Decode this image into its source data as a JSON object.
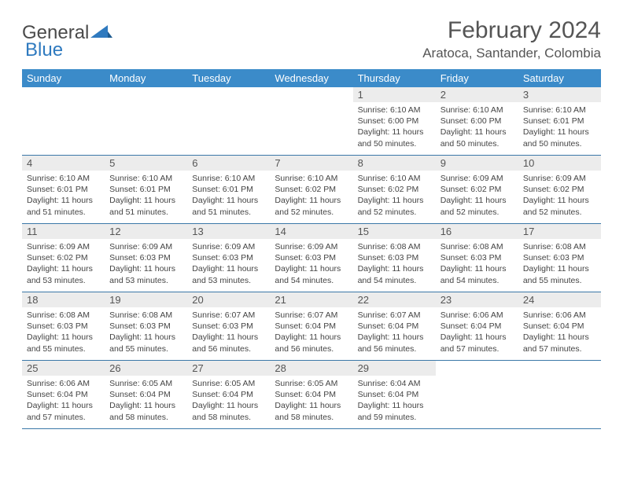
{
  "brand": {
    "part1": "General",
    "part2": "Blue"
  },
  "title": {
    "month": "February 2024",
    "location": "Aratoca, Santander, Colombia"
  },
  "colors": {
    "header_bg": "#3b8bc9",
    "daynum_bg": "#ececec",
    "week_border": "#3b78a8",
    "logo_blue": "#2f7abf"
  },
  "weekdays": [
    "Sunday",
    "Monday",
    "Tuesday",
    "Wednesday",
    "Thursday",
    "Friday",
    "Saturday"
  ],
  "weeks": [
    [
      {
        "n": "",
        "sr": "",
        "ss": "",
        "dl": ""
      },
      {
        "n": "",
        "sr": "",
        "ss": "",
        "dl": ""
      },
      {
        "n": "",
        "sr": "",
        "ss": "",
        "dl": ""
      },
      {
        "n": "",
        "sr": "",
        "ss": "",
        "dl": ""
      },
      {
        "n": "1",
        "sr": "Sunrise: 6:10 AM",
        "ss": "Sunset: 6:00 PM",
        "dl": "Daylight: 11 hours and 50 minutes."
      },
      {
        "n": "2",
        "sr": "Sunrise: 6:10 AM",
        "ss": "Sunset: 6:00 PM",
        "dl": "Daylight: 11 hours and 50 minutes."
      },
      {
        "n": "3",
        "sr": "Sunrise: 6:10 AM",
        "ss": "Sunset: 6:01 PM",
        "dl": "Daylight: 11 hours and 50 minutes."
      }
    ],
    [
      {
        "n": "4",
        "sr": "Sunrise: 6:10 AM",
        "ss": "Sunset: 6:01 PM",
        "dl": "Daylight: 11 hours and 51 minutes."
      },
      {
        "n": "5",
        "sr": "Sunrise: 6:10 AM",
        "ss": "Sunset: 6:01 PM",
        "dl": "Daylight: 11 hours and 51 minutes."
      },
      {
        "n": "6",
        "sr": "Sunrise: 6:10 AM",
        "ss": "Sunset: 6:01 PM",
        "dl": "Daylight: 11 hours and 51 minutes."
      },
      {
        "n": "7",
        "sr": "Sunrise: 6:10 AM",
        "ss": "Sunset: 6:02 PM",
        "dl": "Daylight: 11 hours and 52 minutes."
      },
      {
        "n": "8",
        "sr": "Sunrise: 6:10 AM",
        "ss": "Sunset: 6:02 PM",
        "dl": "Daylight: 11 hours and 52 minutes."
      },
      {
        "n": "9",
        "sr": "Sunrise: 6:09 AM",
        "ss": "Sunset: 6:02 PM",
        "dl": "Daylight: 11 hours and 52 minutes."
      },
      {
        "n": "10",
        "sr": "Sunrise: 6:09 AM",
        "ss": "Sunset: 6:02 PM",
        "dl": "Daylight: 11 hours and 52 minutes."
      }
    ],
    [
      {
        "n": "11",
        "sr": "Sunrise: 6:09 AM",
        "ss": "Sunset: 6:02 PM",
        "dl": "Daylight: 11 hours and 53 minutes."
      },
      {
        "n": "12",
        "sr": "Sunrise: 6:09 AM",
        "ss": "Sunset: 6:03 PM",
        "dl": "Daylight: 11 hours and 53 minutes."
      },
      {
        "n": "13",
        "sr": "Sunrise: 6:09 AM",
        "ss": "Sunset: 6:03 PM",
        "dl": "Daylight: 11 hours and 53 minutes."
      },
      {
        "n": "14",
        "sr": "Sunrise: 6:09 AM",
        "ss": "Sunset: 6:03 PM",
        "dl": "Daylight: 11 hours and 54 minutes."
      },
      {
        "n": "15",
        "sr": "Sunrise: 6:08 AM",
        "ss": "Sunset: 6:03 PM",
        "dl": "Daylight: 11 hours and 54 minutes."
      },
      {
        "n": "16",
        "sr": "Sunrise: 6:08 AM",
        "ss": "Sunset: 6:03 PM",
        "dl": "Daylight: 11 hours and 54 minutes."
      },
      {
        "n": "17",
        "sr": "Sunrise: 6:08 AM",
        "ss": "Sunset: 6:03 PM",
        "dl": "Daylight: 11 hours and 55 minutes."
      }
    ],
    [
      {
        "n": "18",
        "sr": "Sunrise: 6:08 AM",
        "ss": "Sunset: 6:03 PM",
        "dl": "Daylight: 11 hours and 55 minutes."
      },
      {
        "n": "19",
        "sr": "Sunrise: 6:08 AM",
        "ss": "Sunset: 6:03 PM",
        "dl": "Daylight: 11 hours and 55 minutes."
      },
      {
        "n": "20",
        "sr": "Sunrise: 6:07 AM",
        "ss": "Sunset: 6:03 PM",
        "dl": "Daylight: 11 hours and 56 minutes."
      },
      {
        "n": "21",
        "sr": "Sunrise: 6:07 AM",
        "ss": "Sunset: 6:04 PM",
        "dl": "Daylight: 11 hours and 56 minutes."
      },
      {
        "n": "22",
        "sr": "Sunrise: 6:07 AM",
        "ss": "Sunset: 6:04 PM",
        "dl": "Daylight: 11 hours and 56 minutes."
      },
      {
        "n": "23",
        "sr": "Sunrise: 6:06 AM",
        "ss": "Sunset: 6:04 PM",
        "dl": "Daylight: 11 hours and 57 minutes."
      },
      {
        "n": "24",
        "sr": "Sunrise: 6:06 AM",
        "ss": "Sunset: 6:04 PM",
        "dl": "Daylight: 11 hours and 57 minutes."
      }
    ],
    [
      {
        "n": "25",
        "sr": "Sunrise: 6:06 AM",
        "ss": "Sunset: 6:04 PM",
        "dl": "Daylight: 11 hours and 57 minutes."
      },
      {
        "n": "26",
        "sr": "Sunrise: 6:05 AM",
        "ss": "Sunset: 6:04 PM",
        "dl": "Daylight: 11 hours and 58 minutes."
      },
      {
        "n": "27",
        "sr": "Sunrise: 6:05 AM",
        "ss": "Sunset: 6:04 PM",
        "dl": "Daylight: 11 hours and 58 minutes."
      },
      {
        "n": "28",
        "sr": "Sunrise: 6:05 AM",
        "ss": "Sunset: 6:04 PM",
        "dl": "Daylight: 11 hours and 58 minutes."
      },
      {
        "n": "29",
        "sr": "Sunrise: 6:04 AM",
        "ss": "Sunset: 6:04 PM",
        "dl": "Daylight: 11 hours and 59 minutes."
      },
      {
        "n": "",
        "sr": "",
        "ss": "",
        "dl": ""
      },
      {
        "n": "",
        "sr": "",
        "ss": "",
        "dl": ""
      }
    ]
  ]
}
